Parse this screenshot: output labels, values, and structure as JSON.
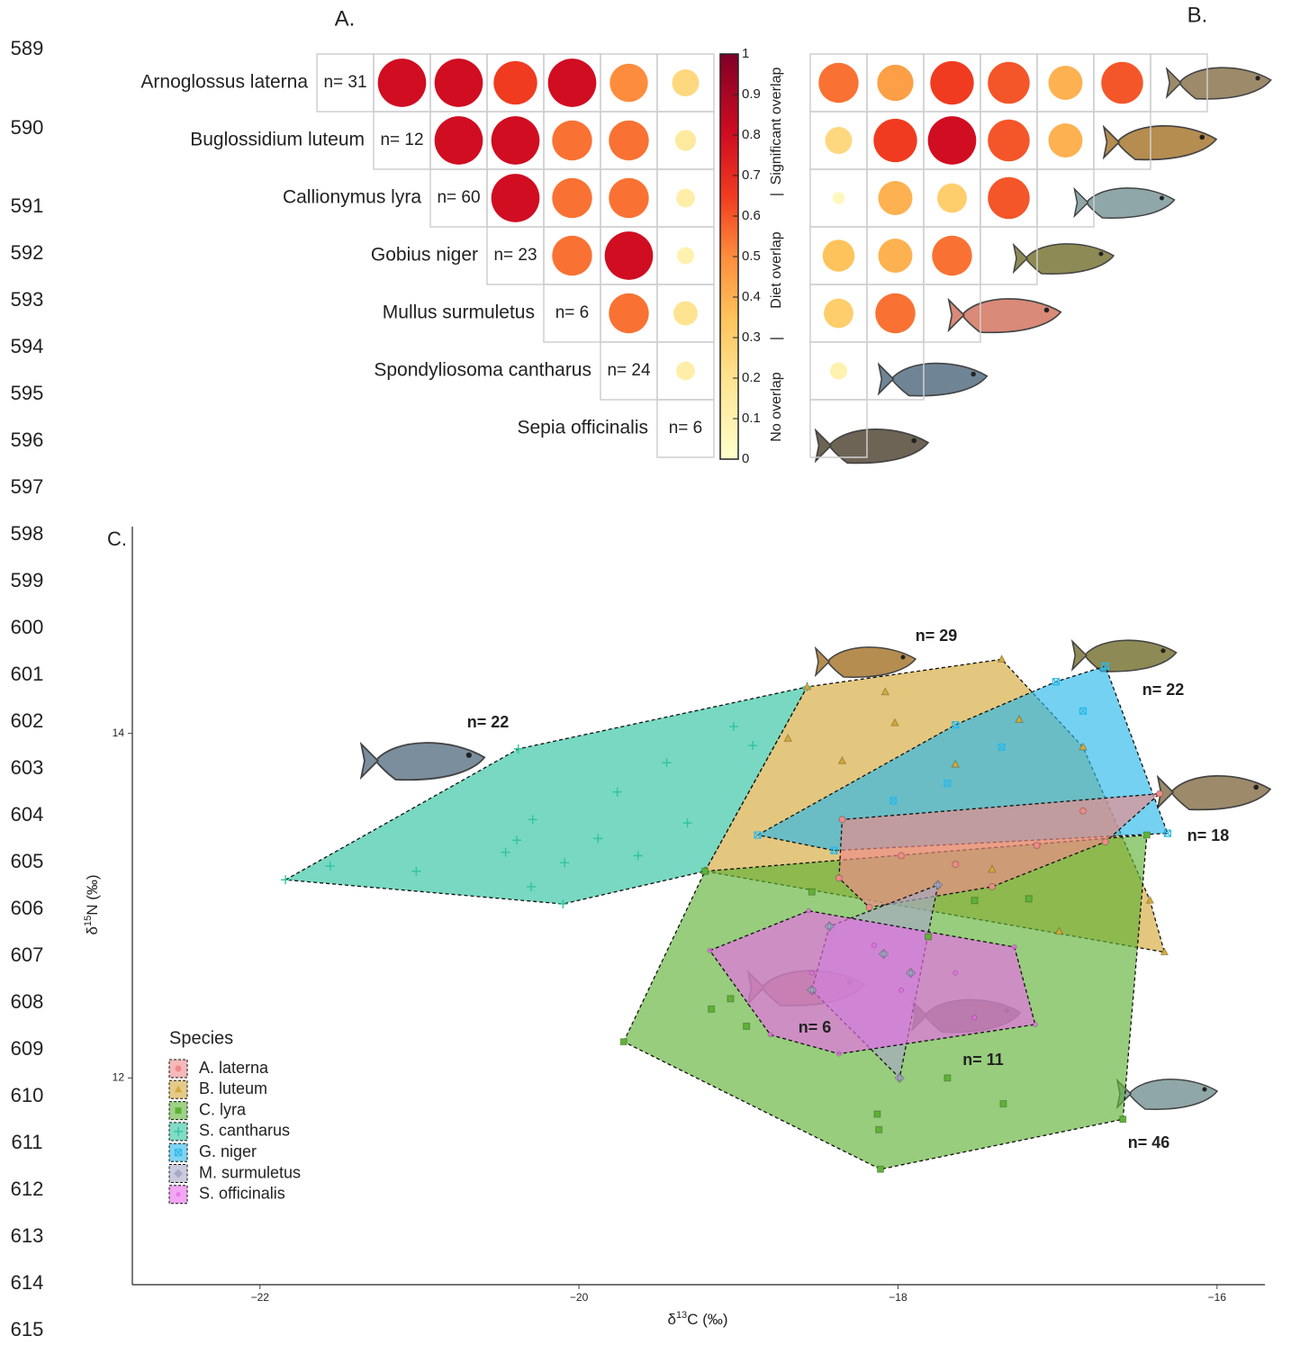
{
  "line_numbers": [
    "589",
    "590",
    "591",
    "592",
    "593",
    "594",
    "595",
    "596",
    "597",
    "598",
    "599",
    "600",
    "601",
    "602",
    "603",
    "604",
    "605",
    "606",
    "607",
    "608",
    "609",
    "610",
    "611",
    "612",
    "613",
    "614",
    "615"
  ],
  "chart_data": [
    {
      "type": "overlap_matrix",
      "panel": "A.",
      "species": [
        "Arnoglossus laterna",
        "Buglossidium luteum",
        "Callionymus lyra",
        "Gobius niger",
        "Mullus surmuletus",
        "Spondyliosoma cantharus",
        "Sepia officinalis"
      ],
      "n_labels": [
        "n= 31",
        "n= 12",
        "n= 60",
        "n= 23",
        "n= 6",
        "n= 24",
        "n= 6"
      ],
      "values": [
        [
          0.8,
          0.8,
          0.65,
          0.8,
          0.5,
          0.25
        ],
        [
          0.8,
          0.8,
          0.55,
          0.55,
          0.15
        ],
        [
          0.8,
          0.55,
          0.55,
          0.12
        ],
        [
          0.55,
          0.8,
          0.1
        ],
        [
          0.55,
          0.2
        ],
        [
          0.12
        ],
        []
      ],
      "colorbar": {
        "lim": [
          0,
          1
        ],
        "ticks": [
          0,
          0.1,
          0.2,
          0.3,
          0.4,
          0.5,
          0.6,
          0.7,
          0.8,
          0.9,
          1
        ],
        "label_parts": [
          "No overlap",
          "|",
          "Diet overlap",
          "|",
          "Significant overlap"
        ]
      }
    },
    {
      "type": "overlap_matrix",
      "panel": "B.",
      "values": [
        [
          0.55,
          0.45,
          0.65,
          0.6,
          0.4,
          0.6
        ],
        [
          0.25,
          0.65,
          0.8,
          0.6,
          0.4
        ],
        [
          0.05,
          0.4,
          0.3,
          0.6
        ],
        [
          0.35,
          0.4,
          0.55
        ],
        [
          0.3,
          0.55
        ],
        [
          0.1
        ],
        []
      ]
    },
    {
      "type": "scatter_hull",
      "panel": "C.",
      "xlabel": [
        "δ",
        "13",
        "C (‰)"
      ],
      "ylabel": [
        "δ",
        "15",
        "N (‰)"
      ],
      "xlim": [
        -22.8,
        -15.7
      ],
      "ylim": [
        10.8,
        15.2
      ],
      "xticks": [
        {
          "value": -22,
          "label": "−22"
        },
        {
          "value": -20,
          "label": "−20"
        },
        {
          "value": -18,
          "label": "−18"
        },
        {
          "value": -16,
          "label": "−16"
        }
      ],
      "yticks": [
        12,
        14
      ],
      "legend": {
        "title": "Species",
        "position": "lower left"
      },
      "series": [
        {
          "name": "A. laterna",
          "color": "#f08a8a",
          "marker": "circle",
          "annotation": "n= 18",
          "x": [
            -18.35,
            -16.36,
            -16.7,
            -17.41,
            -18.18,
            -18.37,
            -17.98,
            -17.64,
            -17.13,
            -16.84
          ],
          "y": [
            13.5,
            13.65,
            13.37,
            13.11,
            12.99,
            13.16,
            13.29,
            13.24,
            13.35,
            13.55
          ]
        },
        {
          "name": "B. luteum",
          "color": "#d4a93a",
          "marker": "triangle",
          "annotation": "n= 29",
          "x": [
            -18.57,
            -18.08,
            -17.35,
            -16.33,
            -19.21,
            -18.02,
            -17.64,
            -17.24,
            -16.99,
            -17.41,
            -16.42,
            -18.69,
            -18.35,
            -16.84
          ],
          "y": [
            14.27,
            14.24,
            14.43,
            12.73,
            13.2,
            14.06,
            13.82,
            14.08,
            12.85,
            13.21,
            13.03,
            13.97,
            13.84,
            13.92
          ]
        },
        {
          "name": "C. lyra",
          "color": "#5fb236",
          "marker": "square",
          "annotation": "n= 46",
          "x": [
            -19.72,
            -19.21,
            -16.44,
            -16.59,
            -18.11,
            -19.17,
            -18.95,
            -18.13,
            -18.12,
            -17.69,
            -17.34,
            -18.54,
            -17.52,
            -17.18,
            -17.81,
            -19.05
          ],
          "y": [
            12.21,
            13.2,
            13.41,
            11.76,
            11.47,
            12.4,
            12.3,
            11.79,
            11.7,
            12.0,
            11.85,
            13.08,
            13.03,
            13.04,
            12.82,
            12.46
          ]
        },
        {
          "name": "S. cantharus",
          "color": "#2fc39f",
          "marker": "plus",
          "annotation": "n= 22",
          "x": [
            -21.84,
            -21.56,
            -21.02,
            -20.38,
            -20.29,
            -20.39,
            -20.46,
            -20.3,
            -20.09,
            -20.1,
            -19.88,
            -19.76,
            -19.63,
            -19.45,
            -19.32,
            -19.03,
            -18.91,
            -18.57,
            -19.21
          ],
          "y": [
            13.15,
            13.23,
            13.2,
            13.91,
            13.5,
            13.38,
            13.31,
            13.11,
            13.25,
            13.01,
            13.39,
            13.66,
            13.29,
            13.83,
            13.48,
            14.04,
            13.93,
            14.27,
            13.2
          ]
        },
        {
          "name": "G. niger",
          "color": "#2ab8ea",
          "marker": "squarex",
          "annotation": "n= 22",
          "x": [
            -18.88,
            -17.01,
            -16.7,
            -16.31,
            -18.4,
            -17.64,
            -17.35,
            -18.03,
            -16.84,
            -17.69
          ],
          "y": [
            13.41,
            14.3,
            14.39,
            13.42,
            13.32,
            14.05,
            13.92,
            13.61,
            14.13,
            13.71
          ]
        },
        {
          "name": "M. surmuletus",
          "color": "#a8a8c8",
          "marker": "diamond",
          "annotation": "n= 6",
          "x": [
            -17.75,
            -17.99,
            -18.54,
            -18.43,
            -18.09,
            -17.92
          ],
          "y": [
            13.12,
            12.0,
            12.51,
            12.88,
            12.72,
            12.61
          ]
        },
        {
          "name": "S. officinalis",
          "color": "#ea6cea",
          "marker": "dot",
          "annotation": "n= 11",
          "x": [
            -19.18,
            -18.56,
            -17.27,
            -17.14,
            -18.37,
            -18.8,
            -17.98,
            -17.64,
            -18.15,
            -17.52,
            -18.54
          ],
          "y": [
            12.74,
            12.97,
            12.76,
            12.31,
            12.14,
            12.25,
            12.51,
            12.61,
            12.77,
            12.35,
            12.61
          ]
        }
      ]
    }
  ]
}
